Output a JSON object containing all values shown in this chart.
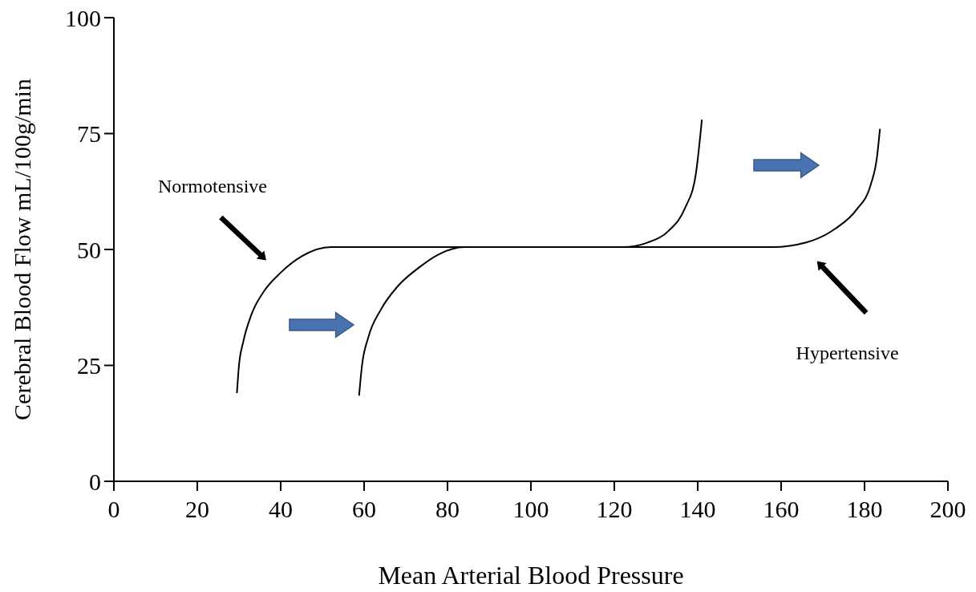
{
  "chart_data": {
    "type": "line",
    "xlabel": "Mean Arterial Blood Pressure",
    "ylabel": "Cerebral Blood Flow mL/100g/min",
    "xlim": [
      0,
      200
    ],
    "ylim": [
      0,
      100
    ],
    "xticks": [
      0,
      20,
      40,
      60,
      80,
      100,
      120,
      140,
      160,
      180,
      200
    ],
    "yticks": [
      0,
      25,
      50,
      75,
      100
    ],
    "grid": false,
    "line_style": "solid",
    "annotations": [
      "Normotensive",
      "Hypertensive"
    ],
    "series": [
      {
        "color": "#000000",
        "x": [
          29.5,
          30,
          31,
          33,
          36,
          40,
          45,
          52,
          122,
          128,
          133,
          137,
          139.5,
          141
        ],
        "values": [
          19,
          25,
          30,
          36,
          41,
          45,
          48.5,
          50.5,
          50.5,
          51.5,
          54,
          59,
          66,
          78
        ]
      },
      {
        "color": "#000000",
        "x": [
          58.8,
          59.5,
          61,
          64,
          68,
          73,
          78,
          84,
          158,
          166,
          173,
          178,
          181.5,
          183,
          183.7
        ],
        "values": [
          18.5,
          25,
          31,
          37,
          42,
          46,
          49,
          50.5,
          50.5,
          51.5,
          54.5,
          58.5,
          64,
          70,
          76
        ]
      }
    ]
  }
}
